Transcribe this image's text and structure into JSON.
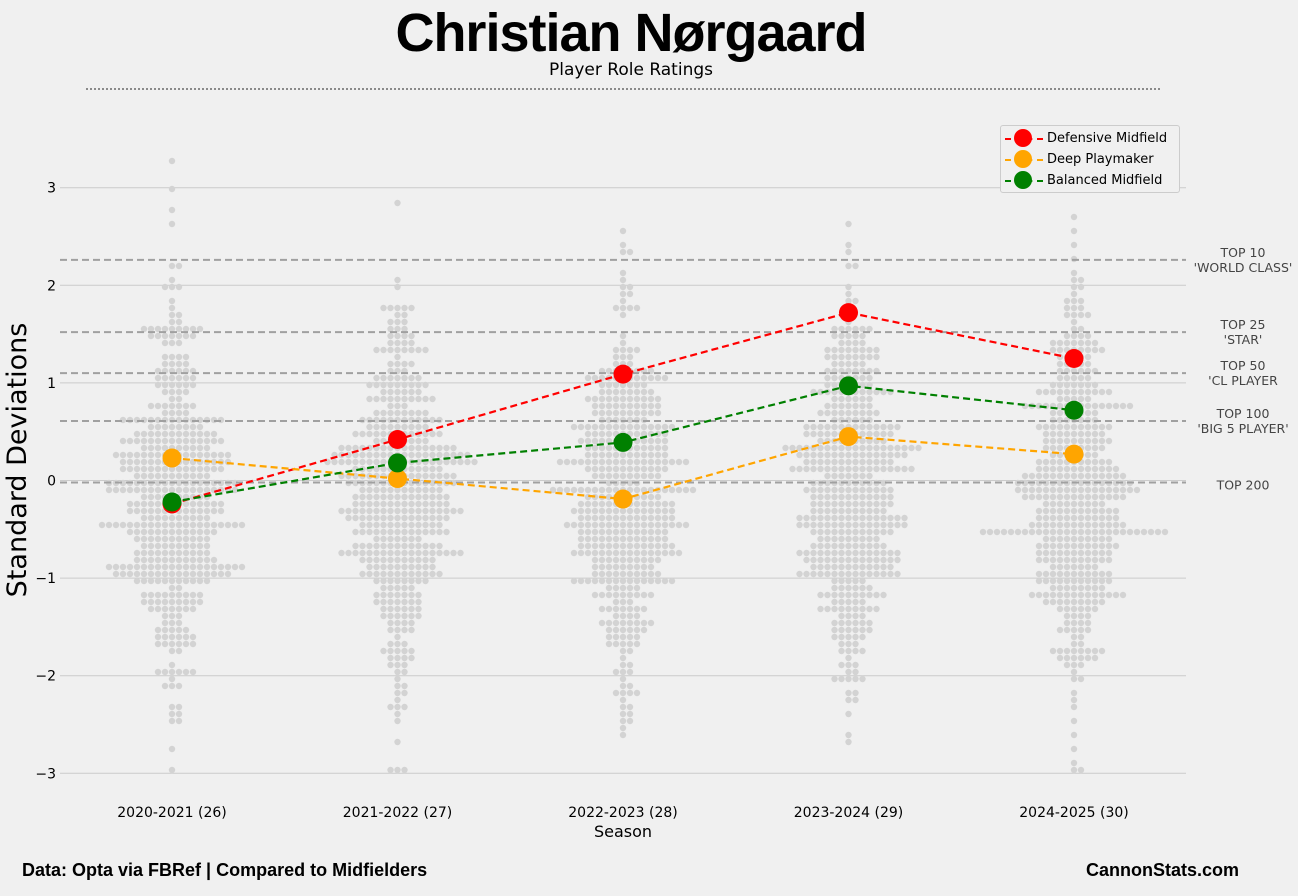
{
  "header": {
    "title": "Christian Nørgaard",
    "subtitle": "Player Role Ratings"
  },
  "footer": {
    "source": "Data: Opta via FBRef | Compared to Midfielders",
    "brand": "CannonStats.com"
  },
  "chart_data": {
    "type": "line",
    "title": "Christian Nørgaard",
    "subtitle": "Player Role Ratings",
    "xlabel": "Season",
    "ylabel": "Standard Deviations",
    "ylim": [
      -3.25,
      3.65
    ],
    "yticks": [
      -3,
      -2,
      -1,
      0,
      1,
      2,
      3
    ],
    "ytick_labels": [
      "−3",
      "−2",
      "−1",
      "0",
      "1",
      "2",
      "3"
    ],
    "categories": [
      "2020-2021 (26)",
      "2021-2022 (27)",
      "2022-2023 (28)",
      "2023-2024 (29)",
      "2024-2025 (30)"
    ],
    "series": [
      {
        "name": "Defensive Midfield",
        "color": "#ff0000",
        "values": [
          -0.24,
          0.42,
          1.09,
          1.72,
          1.25
        ]
      },
      {
        "name": "Deep Playmaker",
        "color": "#ffa500",
        "values": [
          0.23,
          0.02,
          -0.19,
          0.45,
          0.27
        ]
      },
      {
        "name": "Balanced Midfield",
        "color": "#008000",
        "values": [
          -0.22,
          0.18,
          0.39,
          0.97,
          0.72
        ]
      }
    ],
    "thresholds": [
      {
        "value": 2.26,
        "line1": "TOP 10",
        "line2": "'WORLD CLASS'"
      },
      {
        "value": 1.52,
        "line1": "TOP 25",
        "line2": "'STAR'"
      },
      {
        "value": 1.1,
        "line1": "TOP 50",
        "line2": "'CL PLAYER"
      },
      {
        "value": 0.61,
        "line1": "TOP 100",
        "line2": "'BIG 5 PLAYER'"
      },
      {
        "value": -0.02,
        "line1": "TOP 200",
        "line2": ""
      }
    ],
    "legend_position": "top-right",
    "grid": true
  },
  "colors": {
    "background": "#f0f0f0",
    "grid": "#cbcbcb",
    "threshold": "#a0a0a0",
    "swarm": "#d3d3d3"
  }
}
